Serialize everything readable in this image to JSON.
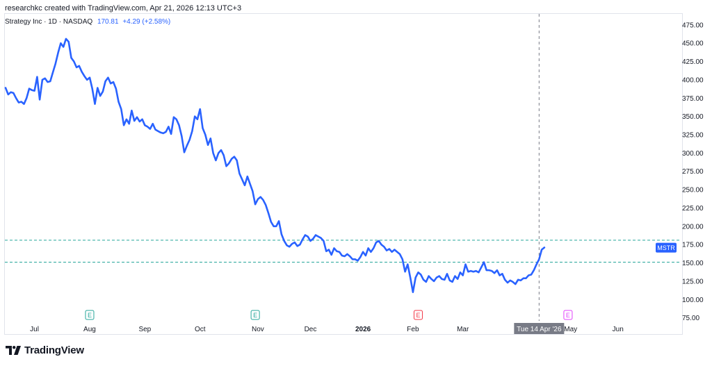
{
  "header": {
    "text": "researchkc created with TradingView.com, Apr 21, 2026 12:13 UTC+3"
  },
  "legend": {
    "symbol": "Strategy Inc · 1D · NASDAQ",
    "price": "170.81",
    "change": "+4.29 (+2.58%)"
  },
  "brand": {
    "name": "TradingView"
  },
  "colors": {
    "line": "#2962ff",
    "hline": "#26a69a",
    "earnings_green": "#26a69a",
    "earnings_red": "#f23645",
    "earnings_magenta": "#e040fb",
    "crosshair": "#787b86"
  },
  "crosshair": {
    "date_label": "Tue 14 Apr '26",
    "date_index": 203
  },
  "price_tag": {
    "label": "MSTR",
    "value": 170.81
  },
  "chart_data": {
    "type": "line",
    "title": "",
    "series": [
      {
        "name": "MSTR"
      }
    ],
    "ylim": [
      68,
      490
    ],
    "yticks": [
      75,
      100,
      125,
      150,
      175,
      200,
      225,
      250,
      275,
      300,
      325,
      350,
      375,
      400,
      425,
      450,
      475
    ],
    "ytick_labels": [
      "75.00",
      "100.00",
      "125.00",
      "150.00",
      "175.00",
      "200.00",
      "225.00",
      "250.00",
      "275.00",
      "300.00",
      "325.00",
      "350.00",
      "375.00",
      "400.00",
      "425.00",
      "450.00",
      "475.00"
    ],
    "xticks": [
      {
        "label": "Jul",
        "index": 11
      },
      {
        "label": "Aug",
        "index": 32
      },
      {
        "label": "Sep",
        "index": 53
      },
      {
        "label": "Oct",
        "index": 74
      },
      {
        "label": "Nov",
        "index": 96
      },
      {
        "label": "Dec",
        "index": 116
      },
      {
        "label": "2026",
        "index": 136,
        "bold": true
      },
      {
        "label": "Feb",
        "index": 155
      },
      {
        "label": "Mar",
        "index": 174
      },
      {
        "label": "May",
        "index": 215
      },
      {
        "label": "Jun",
        "index": 233
      }
    ],
    "horizontal_lines": [
      181,
      151
    ],
    "earnings_markers": [
      {
        "index": 32,
        "label": "E",
        "color": "green"
      },
      {
        "index": 95,
        "label": "E",
        "color": "green"
      },
      {
        "index": 157,
        "label": "E",
        "color": "red"
      },
      {
        "index": 214,
        "label": "E",
        "color": "magenta"
      }
    ],
    "values": [
      389,
      380,
      383,
      382,
      375,
      369,
      370,
      367,
      375,
      388,
      386,
      385,
      404,
      373,
      400,
      402,
      397,
      398,
      410,
      422,
      437,
      450,
      445,
      456,
      452,
      430,
      425,
      417,
      419,
      411,
      405,
      400,
      403,
      388,
      367,
      389,
      378,
      384,
      398,
      403,
      395,
      397,
      388,
      370,
      360,
      338,
      346,
      340,
      358,
      344,
      349,
      343,
      346,
      338,
      336,
      333,
      340,
      332,
      330,
      328,
      327,
      329,
      336,
      326,
      349,
      346,
      338,
      323,
      301,
      310,
      318,
      330,
      350,
      346,
      360,
      334,
      325,
      311,
      320,
      300,
      290,
      300,
      304,
      297,
      282,
      286,
      292,
      295,
      290,
      272,
      264,
      256,
      268,
      258,
      248,
      230,
      237,
      240,
      236,
      229,
      218,
      206,
      200,
      200,
      207,
      189,
      180,
      174,
      172,
      176,
      178,
      173,
      175,
      182,
      188,
      186,
      180,
      183,
      188,
      186,
      184,
      180,
      166,
      168,
      161,
      170,
      166,
      165,
      160,
      159,
      162,
      159,
      155,
      155,
      153,
      158,
      165,
      160,
      170,
      165,
      170,
      178,
      180,
      175,
      172,
      167,
      169,
      165,
      168,
      165,
      162,
      155,
      138,
      148,
      130,
      110,
      130,
      137,
      134,
      127,
      124,
      132,
      128,
      125,
      130,
      132,
      128,
      127,
      135,
      126,
      124,
      132,
      128,
      137,
      133,
      148,
      138,
      139,
      138,
      139,
      137,
      144,
      151,
      140,
      140,
      139,
      136,
      140,
      133,
      135,
      127,
      123,
      126,
      124,
      121,
      127,
      126,
      129,
      129,
      133,
      134,
      140,
      148,
      155,
      168,
      171
    ]
  }
}
